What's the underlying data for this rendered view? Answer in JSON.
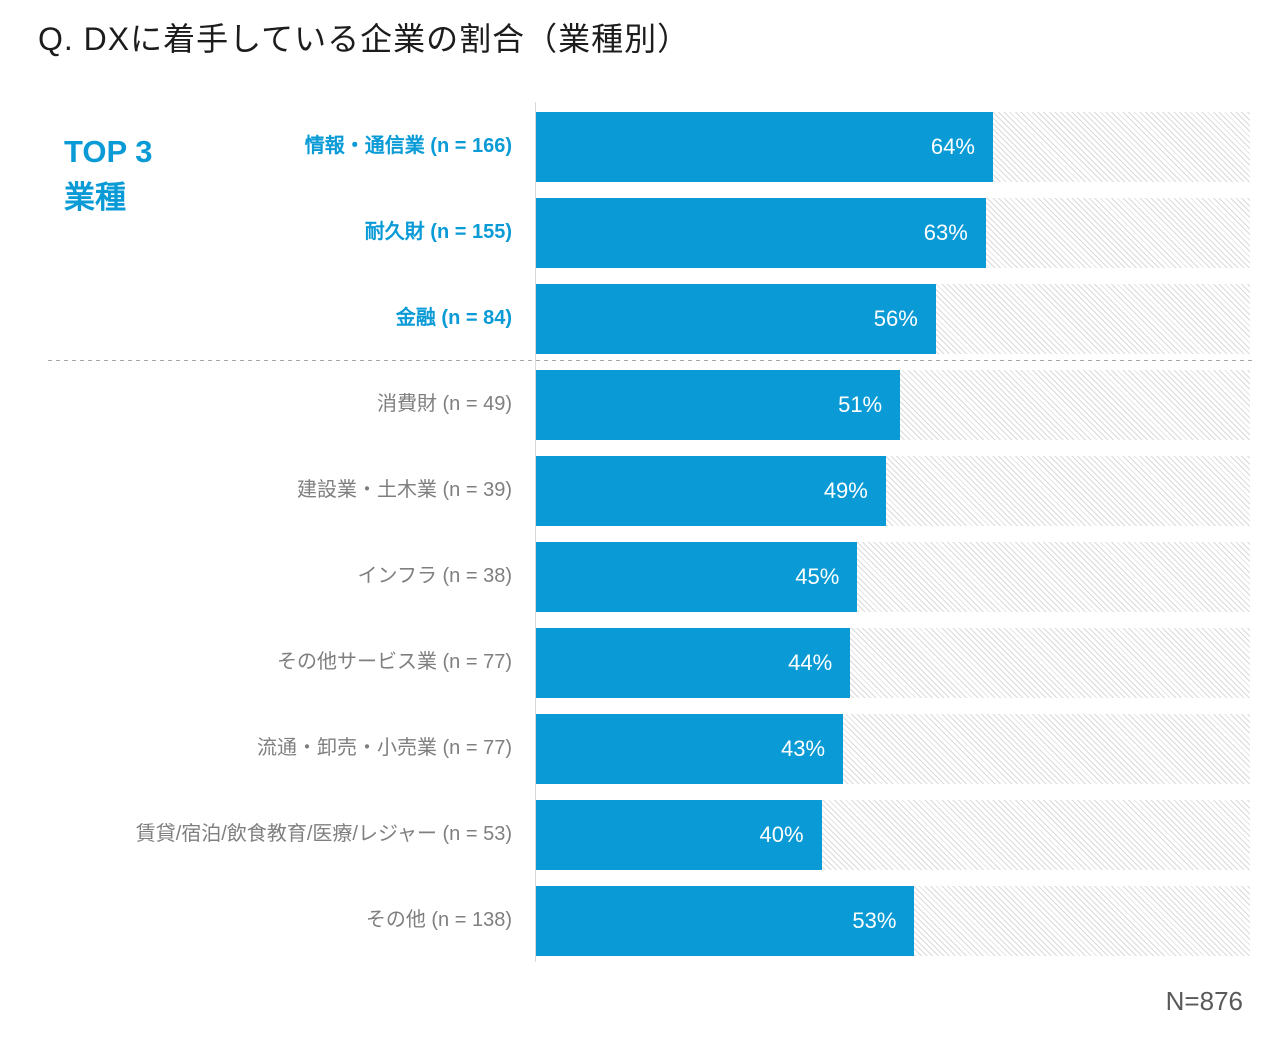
{
  "title": "Q. DXに着手している企業の割合（業種別）",
  "top3": {
    "line1": "TOP 3",
    "line2": "業種"
  },
  "footer": {
    "total": "N=876"
  },
  "colors": {
    "bar_blue": "#0a9bd7",
    "top3_text_blue": "#0a9bd7",
    "label_gray": "#7f7f7f",
    "value_text_white": "#ffffff",
    "title_color": "#1c1c1c",
    "total_gray": "#595959",
    "axis_line_gray": "#d9d9d9",
    "separator_gray": "#a6a6a6",
    "hatch_gray": "#dadada"
  },
  "chart_data": {
    "type": "bar",
    "orientation": "horizontal",
    "title": "Q. DXに着手している企業の割合（業種別）",
    "xlim": [
      0,
      100
    ],
    "unit": "%",
    "grid": false,
    "legend": false,
    "total_label": "N=876",
    "total_n": 876,
    "categories": [
      "情報・通信業",
      "耐久財",
      "金融",
      "消費財",
      "建設業・土木業",
      "インフラ",
      "その他サービス業",
      "流通・卸売・小売業",
      "賃貸/宿泊/飲食教育/医療/レジャー",
      "その他"
    ],
    "n_values": [
      166,
      155,
      84,
      49,
      39,
      38,
      77,
      77,
      53,
      138
    ],
    "values": [
      64,
      63,
      56,
      51,
      49,
      45,
      44,
      43,
      40,
      53
    ],
    "rows": [
      {
        "label": "情報・通信業 (n = 166)",
        "value": 64,
        "value_label": "64%",
        "top3": true
      },
      {
        "label": "耐久財 (n = 155)",
        "value": 63,
        "value_label": "63%",
        "top3": true
      },
      {
        "label": "金融 (n = 84)",
        "value": 56,
        "value_label": "56%",
        "top3": true
      },
      {
        "label": "消費財 (n = 49)",
        "value": 51,
        "value_label": "51%",
        "top3": false
      },
      {
        "label": "建設業・土木業 (n = 39)",
        "value": 49,
        "value_label": "49%",
        "top3": false
      },
      {
        "label": "インフラ (n = 38)",
        "value": 45,
        "value_label": "45%",
        "top3": false
      },
      {
        "label": "その他サービス業 (n = 77)",
        "value": 44,
        "value_label": "44%",
        "top3": false
      },
      {
        "label": "流通・卸売・小売業 (n = 77)",
        "value": 43,
        "value_label": "43%",
        "top3": false
      },
      {
        "label": "賃貸/宿泊/飲食教育/医療/レジャー (n = 53)",
        "value": 40,
        "value_label": "40%",
        "top3": false
      },
      {
        "label": "その他 (n = 138)",
        "value": 53,
        "value_label": "53%",
        "top3": false
      }
    ]
  }
}
